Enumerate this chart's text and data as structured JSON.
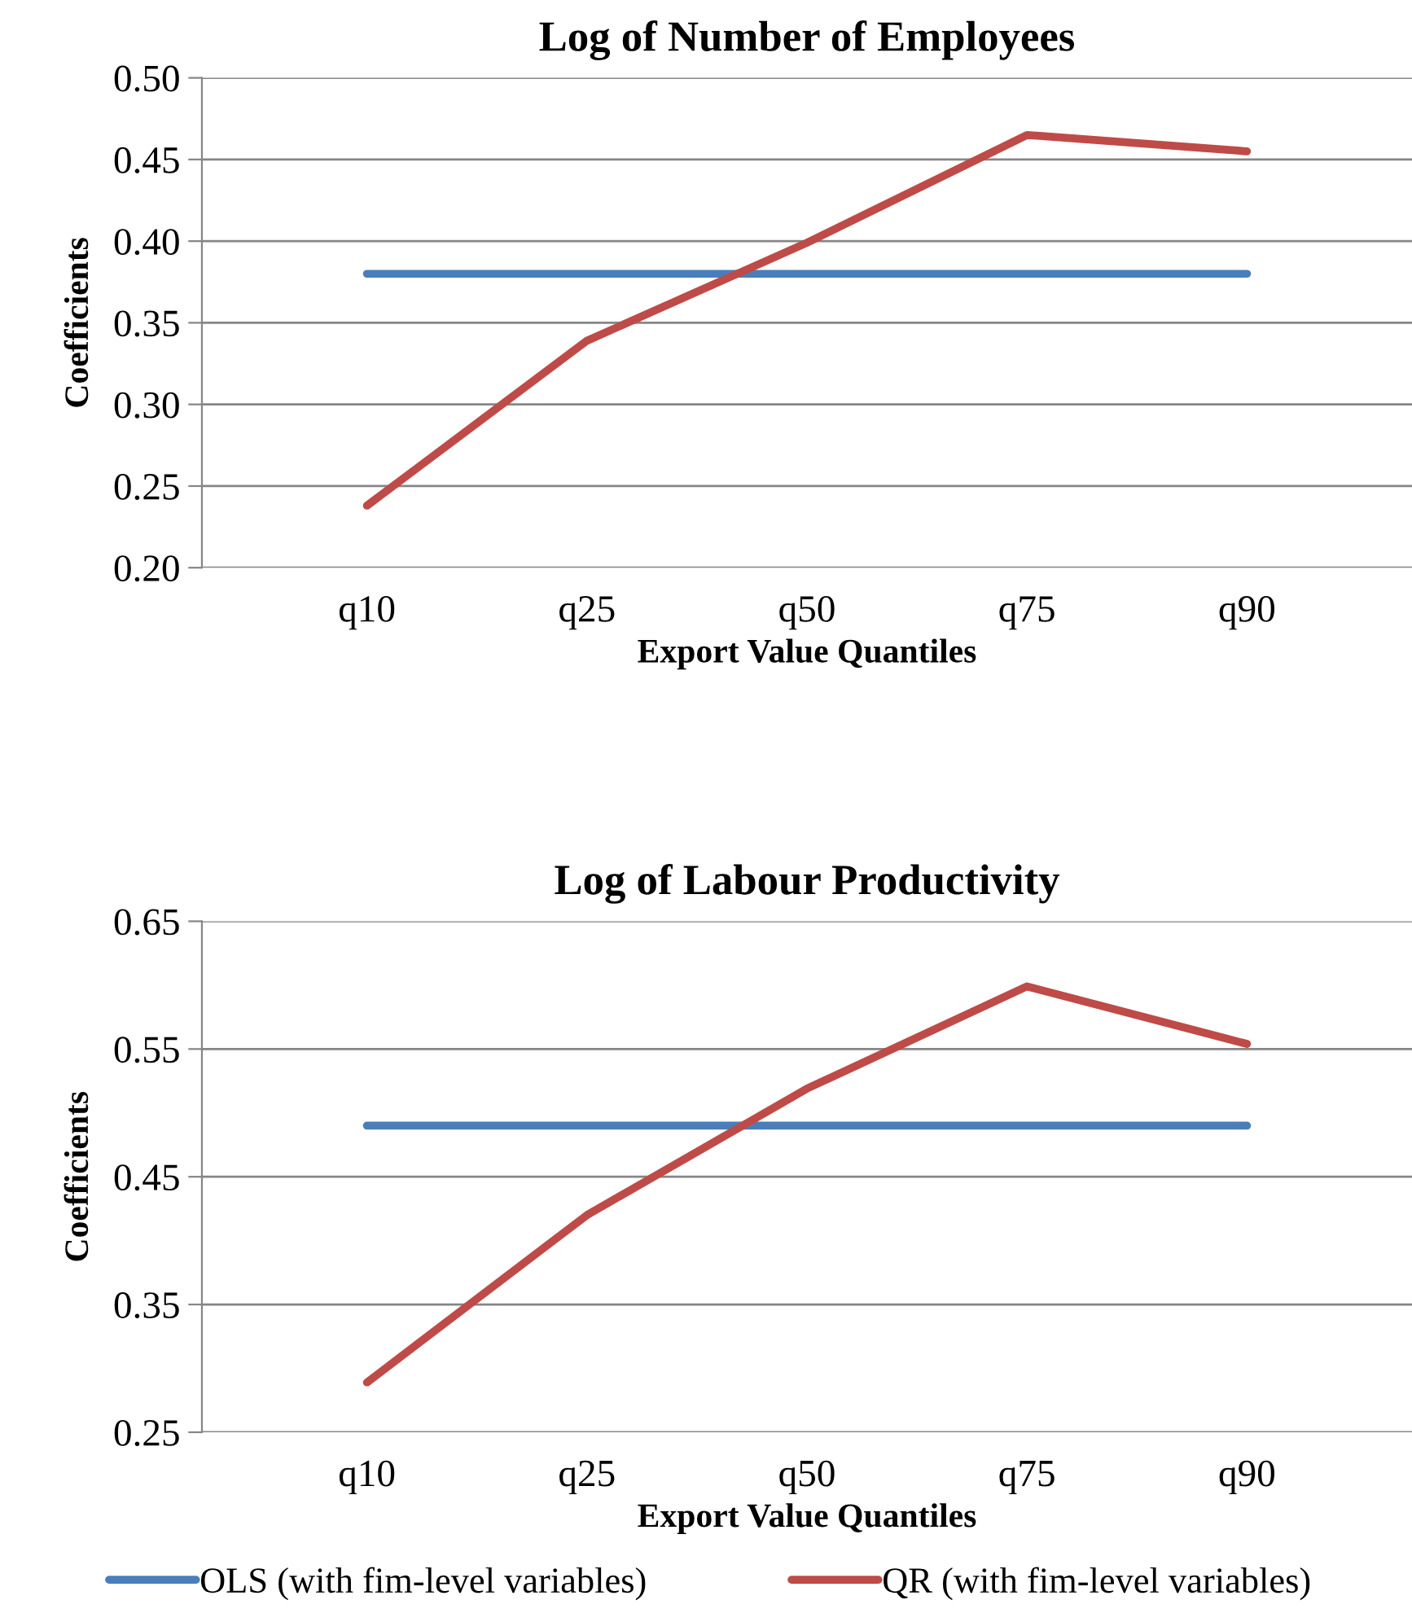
{
  "chart_data": [
    {
      "type": "line",
      "title": "Log of Number of Employees",
      "xlabel": "Export Value Quantiles",
      "ylabel": "Coefficients",
      "categories": [
        "q10",
        "q25",
        "q50",
        "q75",
        "q90"
      ],
      "series": [
        {
          "color": "#4a7ebb",
          "values": [
            0.38,
            0.38,
            0.38,
            0.38,
            0.38
          ]
        },
        {
          "color": "#be4b48",
          "values": [
            0.238,
            0.339,
            0.399,
            0.465,
            0.455
          ]
        }
      ],
      "ylim": [
        0.2,
        0.5
      ],
      "yticks": [
        {
          "value": 0.2,
          "label": "0.20"
        },
        {
          "value": 0.25,
          "label": "0.25"
        },
        {
          "value": 0.3,
          "label": "0.30"
        },
        {
          "value": 0.35,
          "label": "0.35"
        },
        {
          "value": 0.4,
          "label": "0.40"
        },
        {
          "value": 0.45,
          "label": "0.45"
        },
        {
          "value": 0.5,
          "label": "0.50"
        }
      ],
      "grid": "y"
    },
    {
      "type": "line",
      "title": "Log of Labour Productivity",
      "xlabel": "Export Value Quantiles",
      "ylabel": "Coefficients",
      "categories": [
        "q10",
        "q25",
        "q50",
        "q75",
        "q90"
      ],
      "series": [
        {
          "name": "OLS (with fim-level variables)",
          "color": "#4a7ebb",
          "values": [
            0.49,
            0.49,
            0.49,
            0.49,
            0.49
          ]
        },
        {
          "name": "QR (with fim-level variables)",
          "color": "#be4b48",
          "values": [
            0.289,
            0.42,
            0.519,
            0.599,
            0.554
          ]
        }
      ],
      "ylim": [
        0.25,
        0.65
      ],
      "yticks": [
        0.25,
        0.35,
        0.45,
        0.55,
        0.65
      ],
      "grid": "y",
      "legend": "bottom"
    }
  ]
}
